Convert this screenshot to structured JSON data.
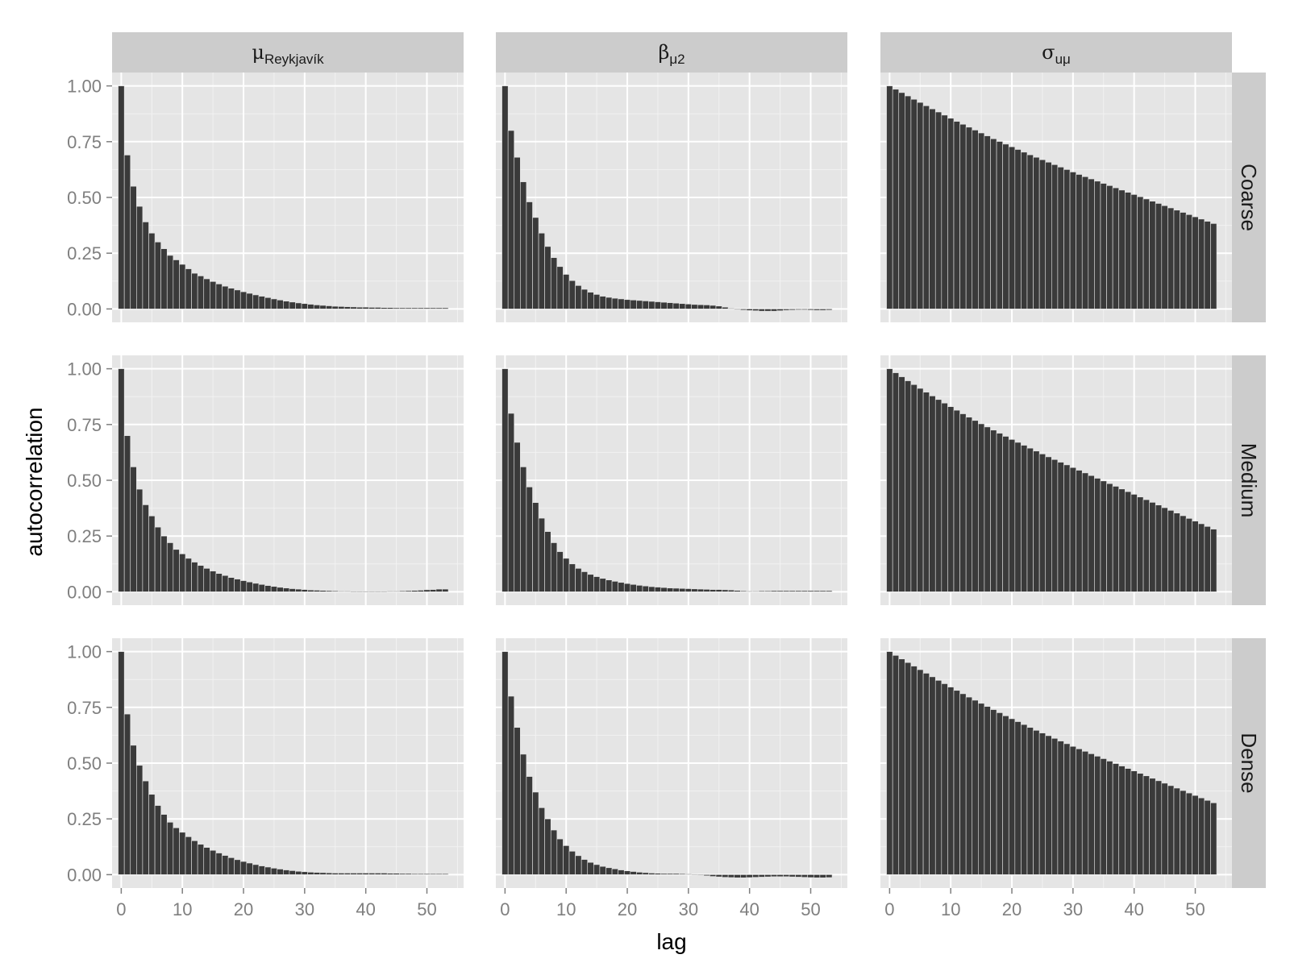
{
  "chart_data": {
    "type": "bar",
    "layout": "facet_grid",
    "xlabel": "lag",
    "ylabel": "autocorrelation",
    "xlim": [
      -1.5,
      56
    ],
    "ylim": [
      -0.06,
      1.06
    ],
    "x_ticks": [
      "0",
      "10",
      "20",
      "30",
      "40",
      "50"
    ],
    "y_ticks": [
      "0.00",
      "0.25",
      "0.50",
      "0.75",
      "1.00"
    ],
    "grid": true,
    "columns": [
      {
        "base": "μ",
        "sub": "Reykjavík"
      },
      {
        "base": "β",
        "sub": "μ2"
      },
      {
        "base": "σ",
        "sub": "uμ"
      }
    ],
    "rows": [
      "Coarse",
      "Medium",
      "Dense"
    ],
    "lags": [
      0,
      1,
      2,
      3,
      4,
      5,
      6,
      7,
      8,
      9,
      10,
      11,
      12,
      13,
      14,
      15,
      16,
      17,
      18,
      19,
      20,
      21,
      22,
      23,
      24,
      25,
      26,
      27,
      28,
      29,
      30,
      31,
      32,
      33,
      34,
      35,
      36,
      37,
      38,
      39,
      40,
      41,
      42,
      43,
      44,
      45,
      46,
      47,
      48,
      49,
      50,
      51,
      52,
      53
    ],
    "panels": [
      {
        "row": "Coarse",
        "col": 0,
        "values": [
          1.0,
          0.69,
          0.55,
          0.46,
          0.39,
          0.34,
          0.3,
          0.27,
          0.24,
          0.22,
          0.2,
          0.18,
          0.16,
          0.148,
          0.135,
          0.123,
          0.112,
          0.102,
          0.093,
          0.085,
          0.077,
          0.07,
          0.063,
          0.057,
          0.051,
          0.045,
          0.04,
          0.035,
          0.031,
          0.027,
          0.024,
          0.021,
          0.018,
          0.016,
          0.014,
          0.012,
          0.011,
          0.01,
          0.009,
          0.008,
          0.008,
          0.007,
          0.007,
          0.006,
          0.006,
          0.005,
          0.005,
          0.005,
          0.005,
          0.005,
          0.005,
          0.005,
          0.005,
          0.005
        ]
      },
      {
        "row": "Coarse",
        "col": 1,
        "values": [
          1.0,
          0.8,
          0.68,
          0.57,
          0.48,
          0.41,
          0.34,
          0.28,
          0.23,
          0.19,
          0.155,
          0.127,
          0.105,
          0.088,
          0.075,
          0.065,
          0.057,
          0.052,
          0.048,
          0.045,
          0.042,
          0.04,
          0.038,
          0.036,
          0.034,
          0.032,
          0.03,
          0.028,
          0.026,
          0.024,
          0.022,
          0.02,
          0.019,
          0.018,
          0.016,
          0.013,
          0.008,
          0.003,
          0.0,
          -0.005,
          -0.007,
          -0.008,
          -0.01,
          -0.01,
          -0.01,
          -0.008,
          -0.006,
          -0.005,
          -0.004,
          -0.004,
          -0.005,
          -0.006,
          -0.006,
          -0.005
        ]
      },
      {
        "row": "Coarse",
        "col": 2,
        "values": [
          1.0,
          0.985,
          0.97,
          0.955,
          0.94,
          0.926,
          0.911,
          0.897,
          0.883,
          0.869,
          0.855,
          0.841,
          0.828,
          0.815,
          0.802,
          0.789,
          0.776,
          0.763,
          0.751,
          0.739,
          0.727,
          0.715,
          0.703,
          0.691,
          0.68,
          0.669,
          0.658,
          0.647,
          0.636,
          0.625,
          0.614,
          0.603,
          0.593,
          0.583,
          0.573,
          0.563,
          0.553,
          0.543,
          0.533,
          0.523,
          0.513,
          0.503,
          0.493,
          0.483,
          0.473,
          0.463,
          0.453,
          0.443,
          0.433,
          0.423,
          0.413,
          0.403,
          0.393,
          0.383
        ]
      },
      {
        "row": "Medium",
        "col": 0,
        "values": [
          1.0,
          0.7,
          0.56,
          0.46,
          0.39,
          0.34,
          0.29,
          0.25,
          0.22,
          0.19,
          0.17,
          0.15,
          0.133,
          0.118,
          0.105,
          0.093,
          0.082,
          0.073,
          0.064,
          0.057,
          0.05,
          0.044,
          0.038,
          0.033,
          0.028,
          0.024,
          0.02,
          0.017,
          0.014,
          0.012,
          0.01,
          0.008,
          0.007,
          0.006,
          0.005,
          0.004,
          0.003,
          0.003,
          0.002,
          0.002,
          0.002,
          0.002,
          0.002,
          0.002,
          0.003,
          0.003,
          0.004,
          0.005,
          0.006,
          0.007,
          0.009,
          0.01,
          0.012,
          0.012
        ]
      },
      {
        "row": "Medium",
        "col": 1,
        "values": [
          1.0,
          0.8,
          0.67,
          0.56,
          0.47,
          0.4,
          0.33,
          0.27,
          0.22,
          0.18,
          0.15,
          0.125,
          0.105,
          0.09,
          0.078,
          0.068,
          0.06,
          0.053,
          0.047,
          0.042,
          0.037,
          0.033,
          0.029,
          0.026,
          0.023,
          0.021,
          0.019,
          0.017,
          0.016,
          0.015,
          0.014,
          0.013,
          0.012,
          0.011,
          0.01,
          0.01,
          0.009,
          0.008,
          0.006,
          0.004,
          0.003,
          0.003,
          0.004,
          0.004,
          0.005,
          0.005,
          0.005,
          0.005,
          0.005,
          0.005,
          0.005,
          0.005,
          0.005,
          0.005
        ]
      },
      {
        "row": "Medium",
        "col": 2,
        "values": [
          1.0,
          0.982,
          0.964,
          0.946,
          0.929,
          0.912,
          0.895,
          0.878,
          0.862,
          0.846,
          0.83,
          0.814,
          0.798,
          0.783,
          0.768,
          0.753,
          0.739,
          0.725,
          0.711,
          0.697,
          0.683,
          0.67,
          0.657,
          0.644,
          0.631,
          0.618,
          0.605,
          0.593,
          0.581,
          0.569,
          0.557,
          0.545,
          0.533,
          0.521,
          0.509,
          0.497,
          0.485,
          0.473,
          0.461,
          0.449,
          0.437,
          0.425,
          0.413,
          0.401,
          0.389,
          0.377,
          0.365,
          0.353,
          0.341,
          0.329,
          0.317,
          0.305,
          0.293,
          0.281
        ]
      },
      {
        "row": "Dense",
        "col": 0,
        "values": [
          1.0,
          0.72,
          0.58,
          0.49,
          0.42,
          0.36,
          0.31,
          0.27,
          0.235,
          0.21,
          0.19,
          0.17,
          0.152,
          0.136,
          0.122,
          0.109,
          0.097,
          0.086,
          0.076,
          0.067,
          0.059,
          0.052,
          0.045,
          0.039,
          0.034,
          0.029,
          0.025,
          0.021,
          0.018,
          0.015,
          0.013,
          0.011,
          0.01,
          0.009,
          0.008,
          0.007,
          0.007,
          0.007,
          0.007,
          0.007,
          0.007,
          0.007,
          0.007,
          0.007,
          0.006,
          0.006,
          0.005,
          0.005,
          0.004,
          0.004,
          0.004,
          0.004,
          0.004,
          0.004
        ]
      },
      {
        "row": "Dense",
        "col": 1,
        "values": [
          1.0,
          0.8,
          0.66,
          0.54,
          0.44,
          0.37,
          0.3,
          0.25,
          0.2,
          0.16,
          0.13,
          0.105,
          0.085,
          0.068,
          0.055,
          0.045,
          0.037,
          0.031,
          0.026,
          0.021,
          0.017,
          0.014,
          0.011,
          0.009,
          0.007,
          0.006,
          0.005,
          0.005,
          0.005,
          0.004,
          0.003,
          0.001,
          -0.002,
          -0.005,
          -0.008,
          -0.01,
          -0.012,
          -0.013,
          -0.014,
          -0.014,
          -0.013,
          -0.012,
          -0.011,
          -0.01,
          -0.009,
          -0.009,
          -0.009,
          -0.01,
          -0.011,
          -0.012,
          -0.013,
          -0.014,
          -0.014,
          -0.013
        ]
      },
      {
        "row": "Dense",
        "col": 2,
        "values": [
          1.0,
          0.983,
          0.967,
          0.951,
          0.935,
          0.919,
          0.903,
          0.887,
          0.871,
          0.856,
          0.841,
          0.826,
          0.811,
          0.796,
          0.782,
          0.768,
          0.754,
          0.74,
          0.726,
          0.712,
          0.699,
          0.686,
          0.673,
          0.66,
          0.647,
          0.635,
          0.623,
          0.611,
          0.599,
          0.587,
          0.575,
          0.564,
          0.553,
          0.542,
          0.531,
          0.52,
          0.509,
          0.498,
          0.487,
          0.476,
          0.465,
          0.454,
          0.443,
          0.432,
          0.421,
          0.41,
          0.399,
          0.388,
          0.377,
          0.366,
          0.355,
          0.344,
          0.333,
          0.322
        ]
      }
    ]
  }
}
